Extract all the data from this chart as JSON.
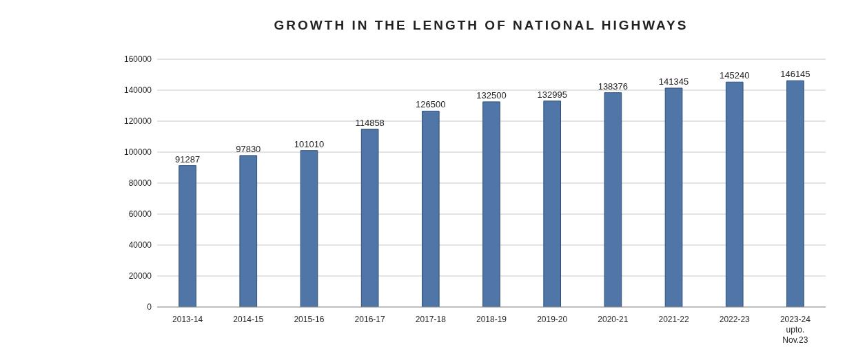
{
  "chart_data": {
    "type": "bar",
    "title": "GROWTH IN THE LENGTH OF NATIONAL HIGHWAYS",
    "categories": [
      "2013-14",
      "2014-15",
      "2015-16",
      "2016-17",
      "2017-18",
      "2018-19",
      "2019-20",
      "2020-21",
      "2021-22",
      "2022-23",
      "2023-24\nupto.\nNov.23"
    ],
    "values": [
      91287,
      97830,
      101010,
      114858,
      126500,
      132500,
      132995,
      138376,
      141345,
      145240,
      146145
    ],
    "color": "#4f76a6",
    "ylim": [
      0,
      160000
    ],
    "yticks": [
      0,
      20000,
      40000,
      60000,
      80000,
      100000,
      120000,
      140000,
      160000
    ],
    "grid": "y",
    "data_labels": true
  }
}
